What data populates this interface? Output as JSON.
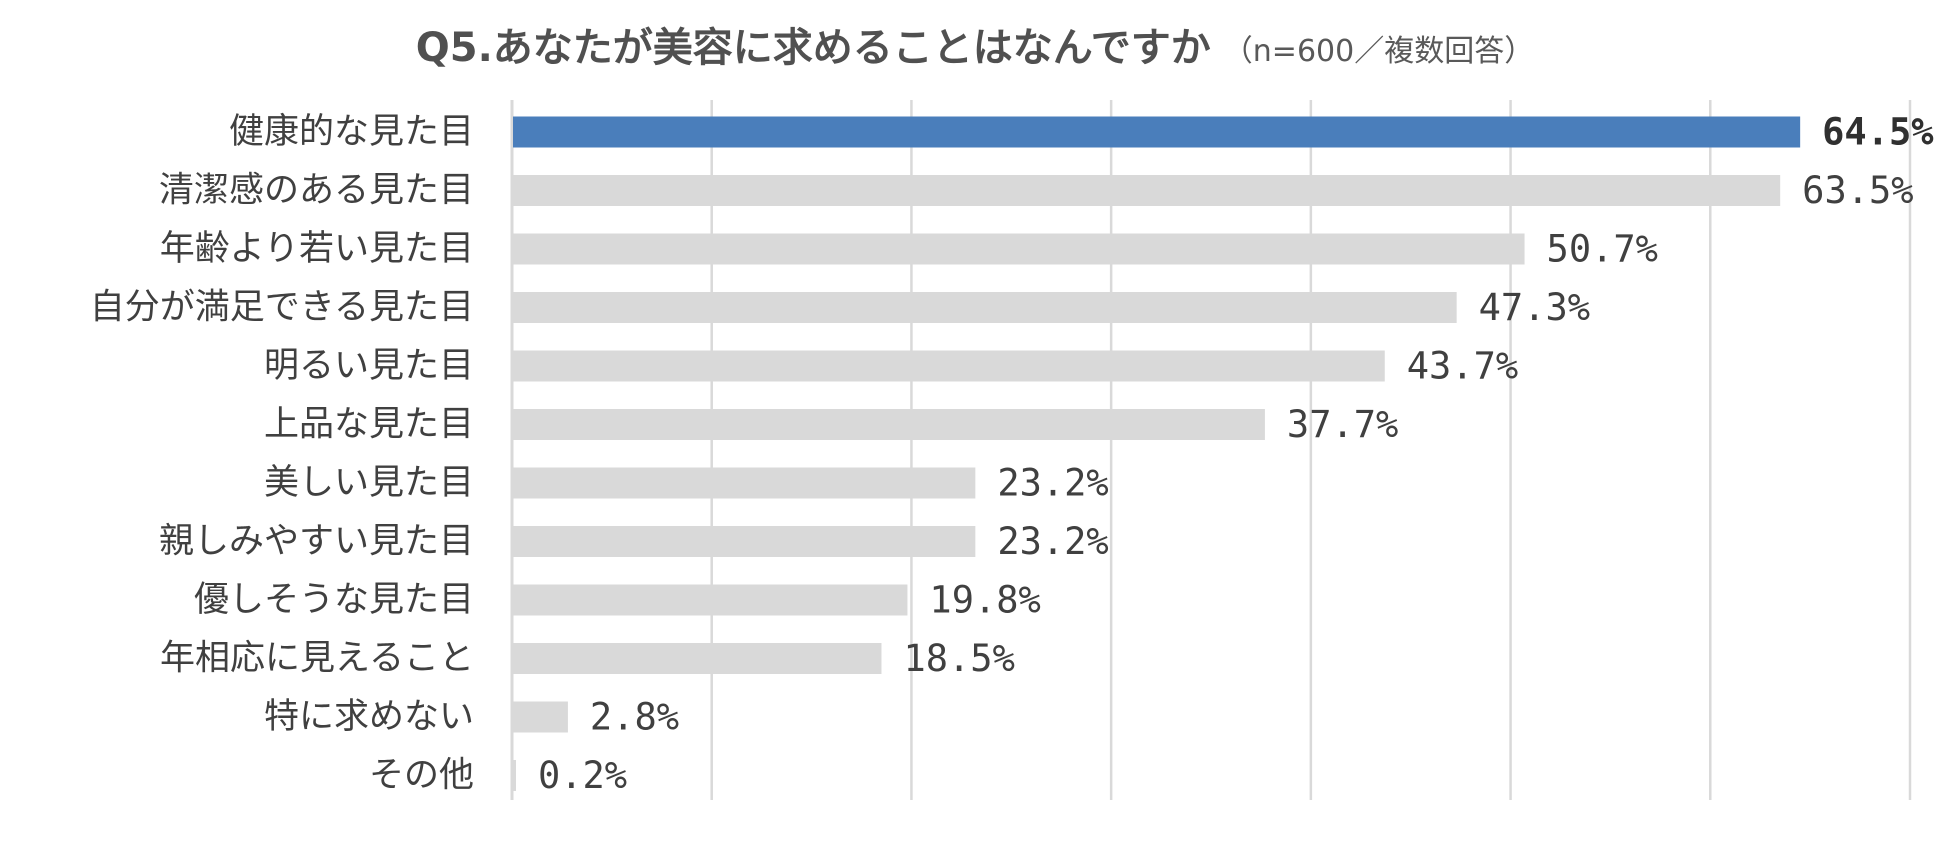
{
  "title": {
    "main": "Q5.あなたが美容に求めることはなんですか",
    "sub": "（n=600／複数回答）"
  },
  "colors": {
    "highlight": "#4a7ebb",
    "bar": "#d9d9d9",
    "grid": "#d9d9d9"
  },
  "chart_data": {
    "type": "bar",
    "orientation": "horizontal",
    "categories": [
      "健康的な見た目",
      "清潔感のある見た目",
      "年齢より若い見た目",
      "自分が満足できる見た目",
      "明るい見た目",
      "上品な見た目",
      "美しい見た目",
      "親しみやすい見た目",
      "優しそうな見た目",
      "年相応に見えること",
      "特に求めない",
      "その他"
    ],
    "values": [
      64.5,
      63.5,
      50.7,
      47.3,
      43.7,
      37.7,
      23.2,
      23.2,
      19.8,
      18.5,
      2.8,
      0.2
    ],
    "value_labels": [
      "64.5%",
      "63.5%",
      "50.7%",
      "47.3%",
      "43.7%",
      "37.7%",
      "23.2%",
      "23.2%",
      "19.8%",
      "18.5%",
      "2.8%",
      "0.2%"
    ],
    "highlight_index": 0,
    "xlim": [
      0,
      70
    ],
    "grid_step": 10,
    "grid": true,
    "legend": "none"
  }
}
